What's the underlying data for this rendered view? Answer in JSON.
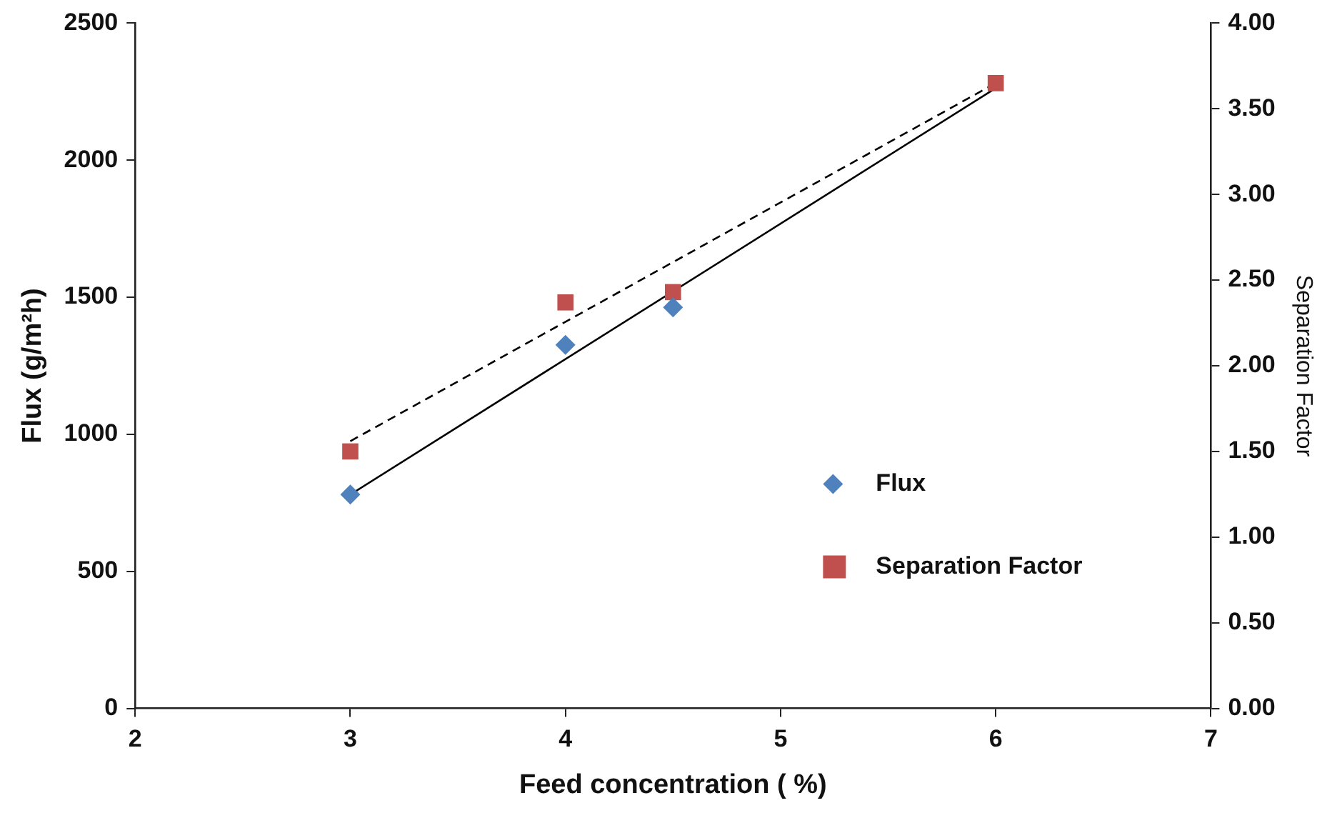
{
  "chart_data": {
    "type": "scatter",
    "xlabel": "Feed concentration ( %)",
    "ylabel": "Flux (g/m²h)",
    "y2label": "Separation Factor",
    "x": [
      3,
      4,
      4.5,
      6
    ],
    "series": [
      {
        "name": "Flux",
        "color": "#4f81bd",
        "values": [
          780,
          1326,
          1463,
          null
        ],
        "marker": "diamond"
      },
      {
        "name": "Separation Factor",
        "color": "#c0504d",
        "values": [
          1.5,
          2.37,
          2.43,
          3.65
        ],
        "marker": "square",
        "axis": "y2"
      },
      {
        "type": "line",
        "values": [
          780,
          null,
          null,
          2263
        ],
        "color": "#000000",
        "line_style": "solid",
        "marker": "none"
      },
      {
        "type": "line",
        "values": [
          1.56,
          null,
          null,
          3.65
        ],
        "color": "#000000",
        "line_style": "dashed",
        "marker": "none",
        "axis": "y2"
      }
    ],
    "xlim": [
      2,
      7
    ],
    "xticks": [
      2,
      3,
      4,
      5,
      6,
      7
    ],
    "ylim": [
      0,
      2500
    ],
    "yticks": [
      0,
      500,
      1000,
      1500,
      2000,
      2500
    ],
    "y2lim": [
      0,
      4
    ],
    "y2ticks": [
      {
        "value": 0,
        "label": "0.00"
      },
      {
        "value": 0.5,
        "label": "0.50"
      },
      {
        "value": 1,
        "label": "1.00"
      },
      {
        "value": 1.5,
        "label": "1.50"
      },
      {
        "value": 2,
        "label": "2.00"
      },
      {
        "value": 2.5,
        "label": "2.50"
      },
      {
        "value": 3,
        "label": "3.00"
      },
      {
        "value": 3.5,
        "label": "3.50"
      },
      {
        "value": 4,
        "label": "4.00"
      }
    ],
    "grid": false,
    "legend": "bottom right"
  }
}
